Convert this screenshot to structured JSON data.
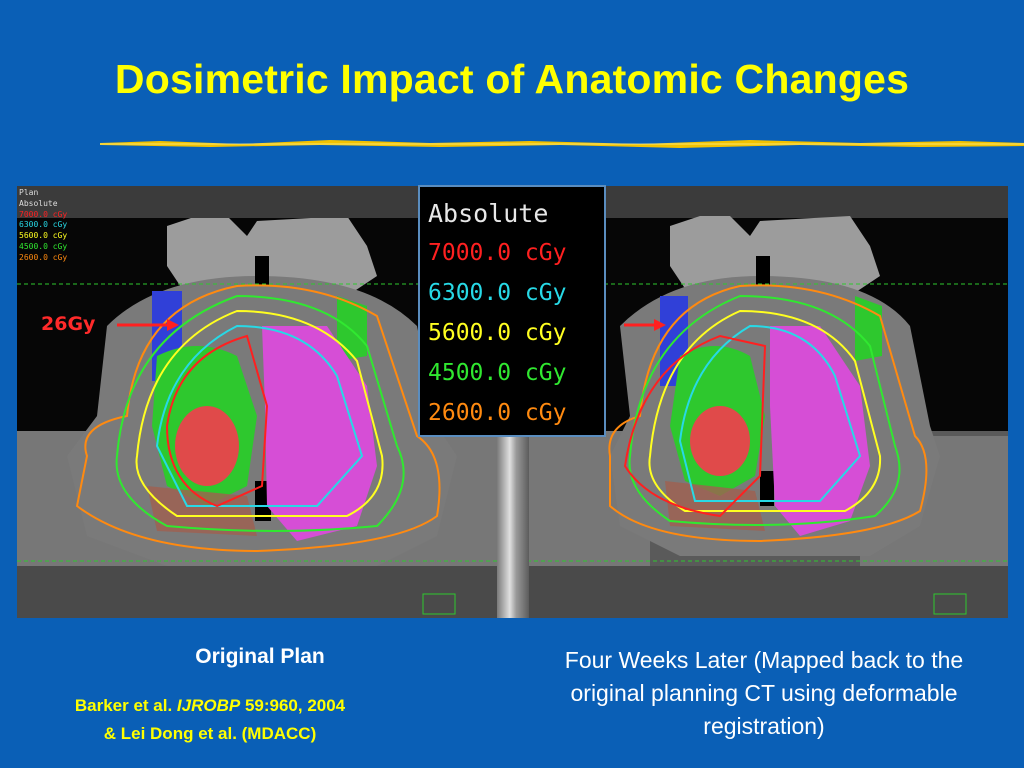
{
  "slide": {
    "title": "Dosimetric Impact of Anatomic Changes",
    "colors": {
      "background": "#0a5fb6",
      "title": "#ffff00",
      "rule": "#f2c200"
    }
  },
  "left_scan": {
    "header_lines": [
      "Plan",
      "Absolute",
      "7000.0 cGy",
      "6300.0 cGy",
      "5600.0 cGy",
      "4500.0 cGy",
      "2600.0 cGy"
    ],
    "annotation": "26Gy"
  },
  "legend": {
    "header": "Absolute",
    "rows": [
      {
        "label": "7000.0 cGy",
        "color": "#ff2020"
      },
      {
        "label": "6300.0 cGy",
        "color": "#27d9e6"
      },
      {
        "label": "5600.0 cGy",
        "color": "#ffff20"
      },
      {
        "label": "4500.0 cGy",
        "color": "#30e830"
      },
      {
        "label": "2600.0 cGy",
        "color": "#ff8a10"
      }
    ]
  },
  "captions": {
    "left": "Original Plan",
    "citation_line1_a": "Barker et al. ",
    "citation_journal": "IJROBP",
    "citation_line1_b": " 59:960, 2004",
    "citation_line2": "& Lei Dong et al. (MDACC)",
    "right": "Four Weeks Later (Mapped back to the original planning CT using deformable registration)"
  }
}
